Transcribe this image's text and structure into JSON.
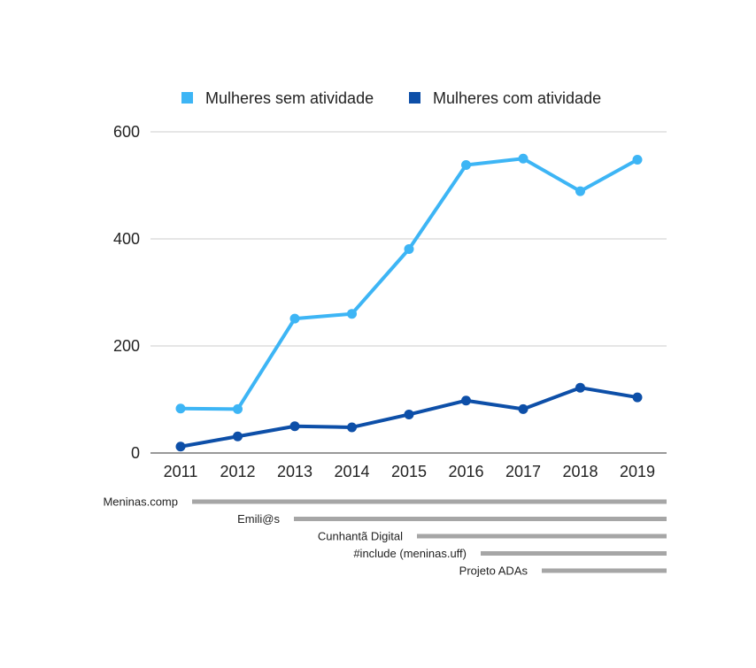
{
  "chart_data": {
    "type": "line",
    "x": [
      "2011",
      "2012",
      "2013",
      "2014",
      "2015",
      "2016",
      "2017",
      "2018",
      "2019"
    ],
    "ylim": [
      0,
      600
    ],
    "yticks": [
      0,
      200,
      400,
      600
    ],
    "grid": true,
    "legend_position": "top",
    "series": [
      {
        "name": "Mulheres sem atividade",
        "color": "#3db5f5",
        "values": [
          83,
          82,
          251,
          260,
          381,
          538,
          550,
          489,
          548
        ]
      },
      {
        "name": "Mulheres com atividade",
        "color": "#0d4fa8",
        "values": [
          12,
          31,
          50,
          48,
          72,
          98,
          82,
          122,
          104
        ]
      }
    ],
    "projects": [
      {
        "label": "Meninas.comp",
        "start": "2011"
      },
      {
        "label": "Emili@s",
        "start": "2013"
      },
      {
        "label": "Cunhantã Digital",
        "start": "2015"
      },
      {
        "label": "#include (meninas.uff)",
        "start": "2016"
      },
      {
        "label": "Projeto ADAs",
        "start": "2017"
      }
    ]
  }
}
